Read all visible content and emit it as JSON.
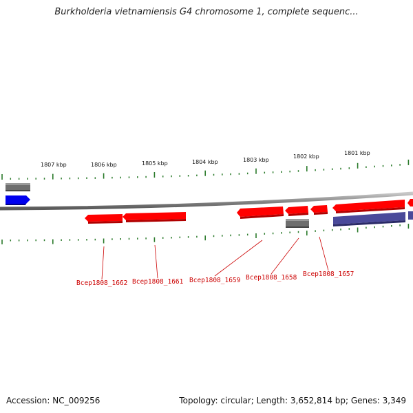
{
  "title": "Burkholderia vietnamiensis G4 chromosome 1, complete sequenc...",
  "footer": {
    "accession": "Accession: NC_009256",
    "summary": "Topology: circular; Length: 3,652,814 bp; Genes: 3,349"
  },
  "ruler": {
    "labels": [
      "1807 kbp",
      "1806 kbp",
      "1805 kbp",
      "1804 kbp",
      "1803 kbp",
      "1802 kbp",
      "1801 kbp"
    ]
  },
  "genes": {
    "labels": [
      "Bcep1808_1662",
      "Bcep1808_1661",
      "Bcep1808_1659",
      "Bcep1808_1658",
      "Bcep1808_1657"
    ]
  },
  "colors": {
    "forward_gene": "#ff0000",
    "rna_gene": "#0000ee",
    "pseudo_gene": "#6e6e6e",
    "other_feature": "#4a4a9a",
    "ruler_tick": "#2a7a2a",
    "backbone": "#8a8a8a",
    "label_text": "#cc0000"
  }
}
